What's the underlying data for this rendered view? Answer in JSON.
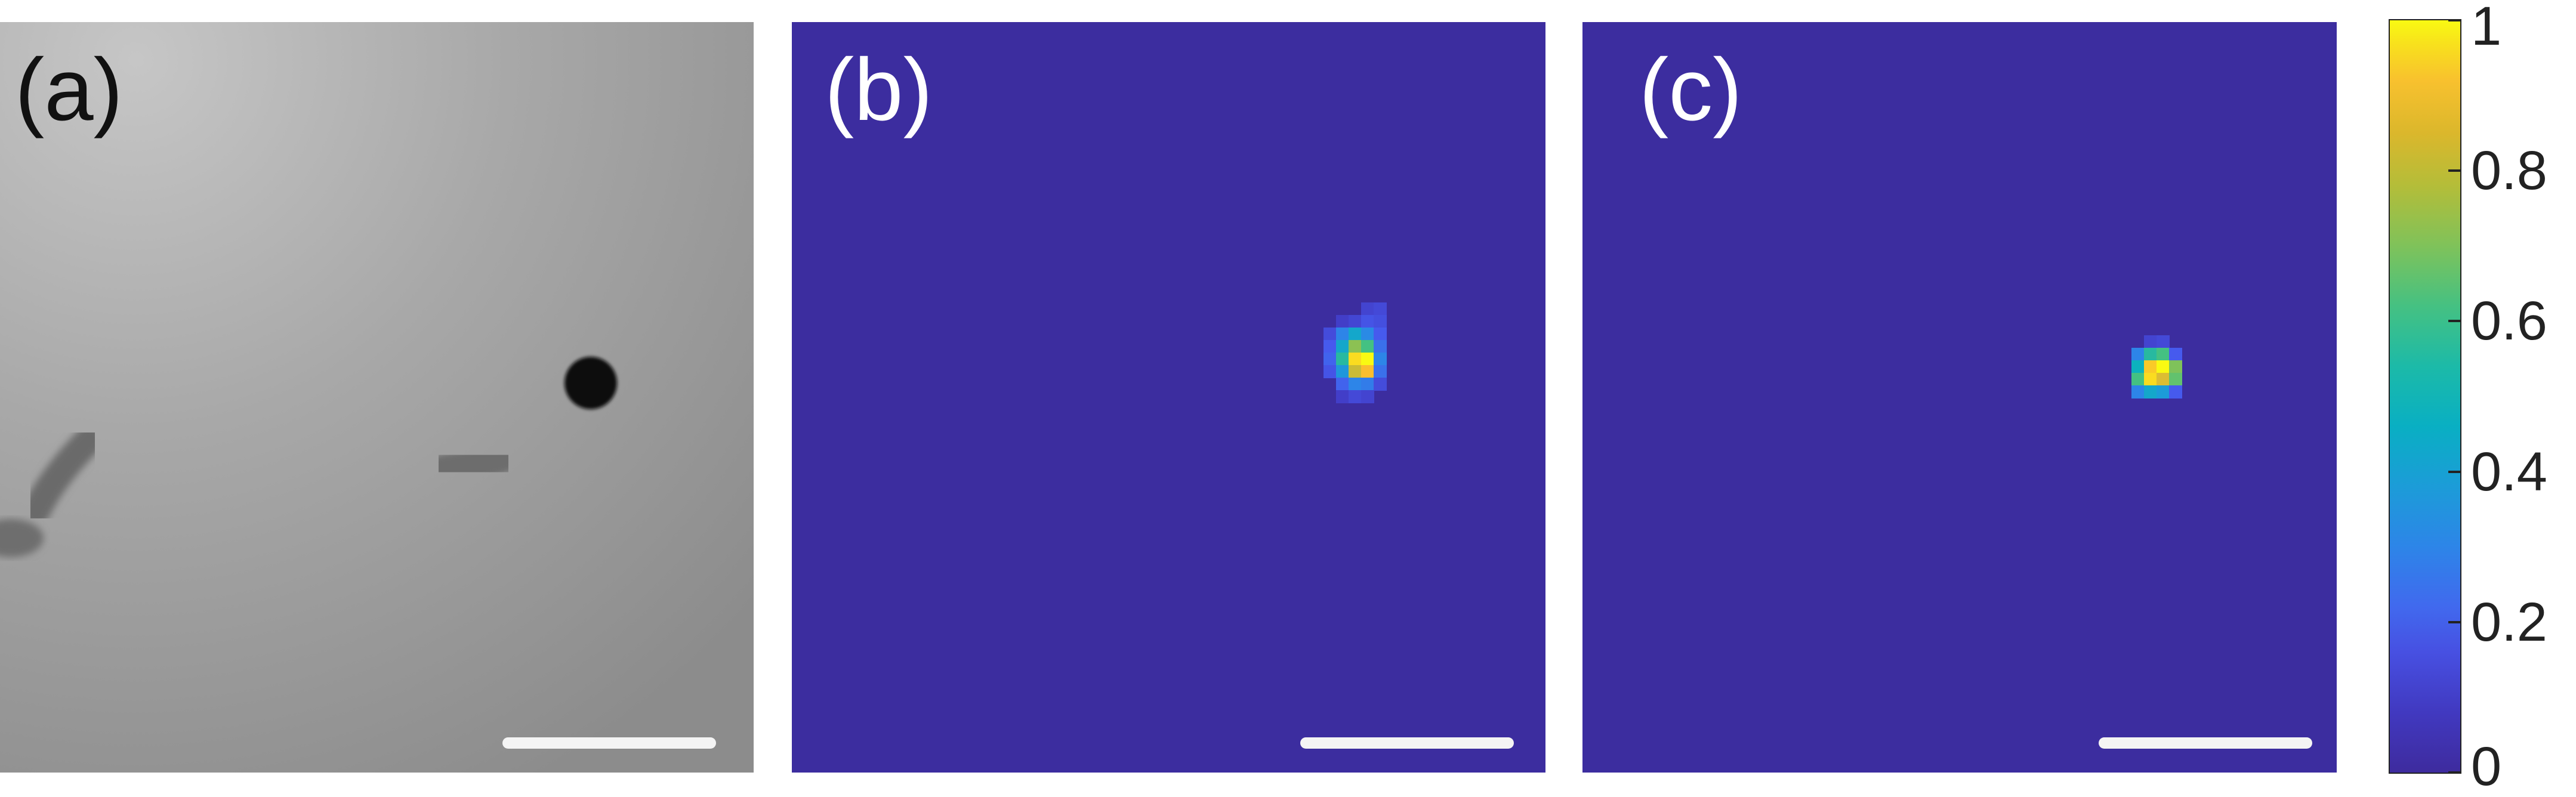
{
  "panels": [
    {
      "label": "(a)",
      "kind": "grayscale micrograph"
    },
    {
      "label": "(b)",
      "kind": "heatmap"
    },
    {
      "label": "(c)",
      "kind": "heatmap"
    }
  ],
  "colorbar": {
    "ticks": [
      "0",
      "0.2",
      "0.4",
      "0.6",
      "0.8",
      "1"
    ],
    "tick_values": [
      0,
      0.2,
      0.4,
      0.6,
      0.8,
      1
    ],
    "range": [
      0,
      1
    ],
    "colormap": "parula"
  },
  "colors": {
    "heatmap_background": "#3c2d9f",
    "scale_bar": "#f4f4f4",
    "micrograph_background": "#a9a9a9"
  }
}
